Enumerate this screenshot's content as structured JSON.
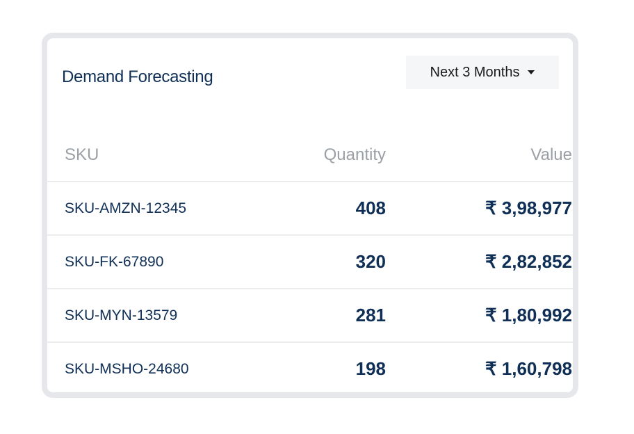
{
  "header": {
    "title": "Demand Forecasting",
    "period_dropdown": "Next 3 Months"
  },
  "table": {
    "columns": [
      "SKU",
      "Quantity",
      "Value"
    ],
    "rows": [
      {
        "sku": "SKU-AMZN-12345",
        "quantity": "408",
        "value": "₹ 3,98,977"
      },
      {
        "sku": "SKU-FK-67890",
        "quantity": "320",
        "value": "₹ 2,82,852"
      },
      {
        "sku": "SKU-MYN-13579",
        "quantity": "281",
        "value": "₹ 1,80,992"
      },
      {
        "sku": "SKU-MSHO-24680",
        "quantity": "198",
        "value": "₹ 1,60,798"
      }
    ]
  },
  "colors": {
    "title": "#0f2f57",
    "header_text": "#9aa0a6",
    "card_border": "#e5e7eb"
  }
}
